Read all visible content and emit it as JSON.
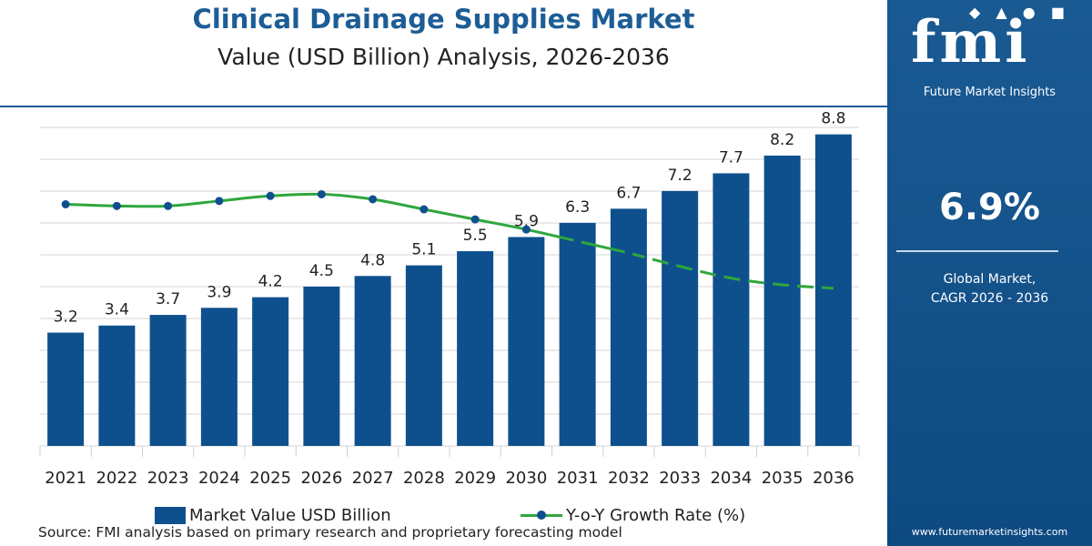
{
  "title": "Clinical Drainage Supplies Market",
  "subtitle": "Value (USD Billion) Analysis, 2026-2036",
  "legend": {
    "bar_label": "Market Value USD Billion",
    "line_label": "Y-o-Y Growth Rate (%)"
  },
  "source": "Source: FMI analysis based on primary research and proprietary forecasting model",
  "sidebar": {
    "logo_text": "fmi",
    "brand_name": "Future Market Insights",
    "cagr_value": "6.9%",
    "cagr_label_line1": "Global Market,",
    "cagr_label_line2": "CAGR 2026 - 2036",
    "website": "www.futuremarketinsights.com"
  },
  "colors": {
    "title": "#1d5d96",
    "bar": "#0e508d",
    "line": "#2fa63d",
    "marker": "#0e508d",
    "sidebar": "#1a5a93"
  },
  "chart_data": {
    "type": "bar",
    "categories": [
      "2021",
      "2022",
      "2023",
      "2024",
      "2025",
      "2026",
      "2027",
      "2028",
      "2029",
      "2030",
      "2031",
      "2032",
      "2033",
      "2034",
      "2035",
      "2036"
    ],
    "series": [
      {
        "name": "Market Value USD Billion",
        "type": "bar",
        "values": [
          3.2,
          3.4,
          3.7,
          3.9,
          4.2,
          4.5,
          4.8,
          5.1,
          5.5,
          5.9,
          6.3,
          6.7,
          7.2,
          7.7,
          8.2,
          8.8
        ],
        "data_labels": [
          "3.2",
          "3.4",
          "3.7",
          "3.9",
          "4.2",
          "4.5",
          "4.8",
          "5.1",
          "5.5",
          "5.9",
          "6.3",
          "6.7",
          "7.2",
          "7.7",
          "8.2",
          "8.8"
        ]
      },
      {
        "name": "Y-o-Y Growth Rate (%)",
        "type": "line",
        "values": [
          6.9,
          6.8,
          6.8,
          7.1,
          7.4,
          7.5,
          7.2,
          6.6,
          6.0,
          5.4,
          4.7,
          4.0,
          3.2,
          2.5,
          2.1,
          1.9
        ],
        "solid_until_index": 11,
        "dashed_from_index": 11
      }
    ],
    "ylim": [
      0,
      9.1
    ],
    "y2lim": [
      -7.5,
      11.7
    ],
    "grid": true,
    "legend_position": "bottom"
  }
}
